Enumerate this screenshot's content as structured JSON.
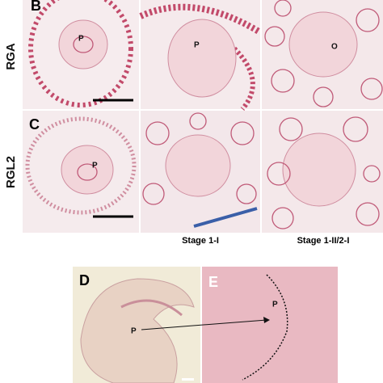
{
  "row_labels": [
    "RGA",
    "RGL2"
  ],
  "column_labels": [
    "Stage 1-I",
    "Stage 1-II/2-I"
  ],
  "panels": [
    {
      "letter": "B",
      "marks": [
        "P",
        "P",
        "O"
      ]
    },
    {
      "letter": "C",
      "marks": [
        "P"
      ]
    },
    {
      "letter": "D",
      "marks": [
        "P"
      ]
    },
    {
      "letter": "E",
      "marks": [
        "P"
      ]
    }
  ]
}
